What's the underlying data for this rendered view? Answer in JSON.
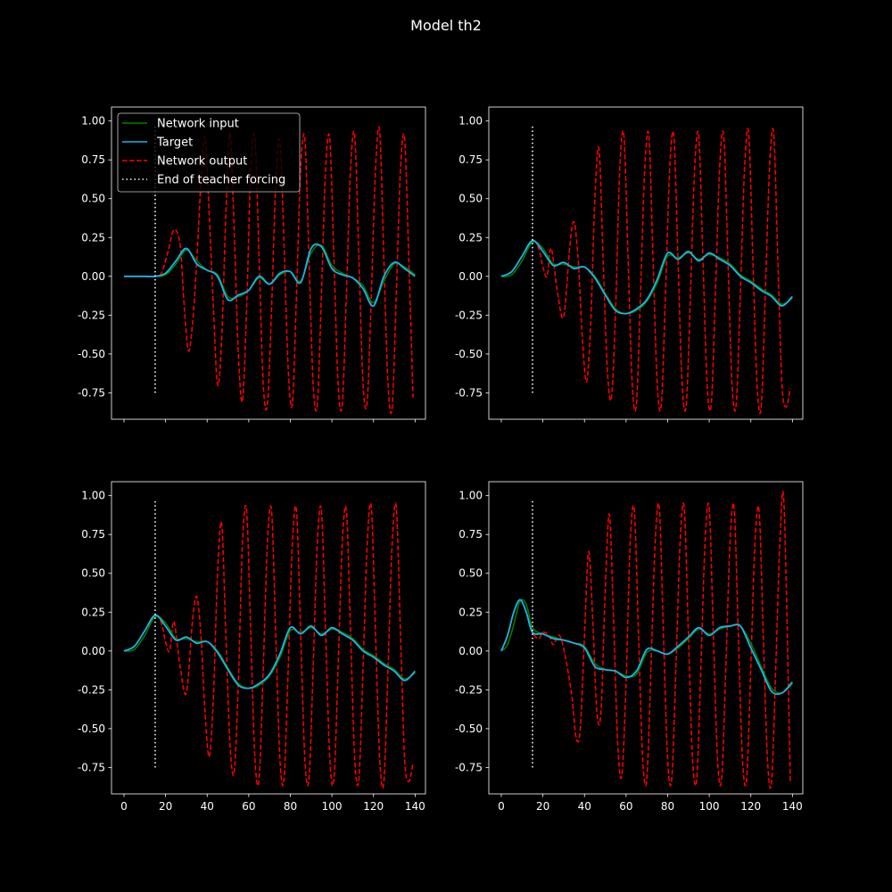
{
  "figure": {
    "title": "Model th2",
    "background": "#000000",
    "foreground": "#ffffff"
  },
  "legend": {
    "placement": "upper-left of first panel",
    "entries": [
      {
        "label": "Network input",
        "color": "#008000",
        "style": "solid"
      },
      {
        "label": "Target",
        "color": "#1fb4e6",
        "style": "solid"
      },
      {
        "label": "Network output",
        "color": "#ff0000",
        "style": "dashed"
      },
      {
        "label": "End of teacher forcing",
        "color": "#ffffff",
        "style": "dotted"
      }
    ]
  },
  "chart_data": [
    {
      "type": "line",
      "panel": "top-left",
      "xlim": [
        -6,
        145
      ],
      "ylim": [
        -0.92,
        1.09
      ],
      "xticks": [
        0,
        20,
        40,
        60,
        80,
        100,
        120,
        140
      ],
      "yticks": [
        -0.75,
        -0.5,
        -0.25,
        0.0,
        0.25,
        0.5,
        0.75,
        1.0
      ],
      "show_xtick_labels": false,
      "teacher_forcing_end": {
        "x": 15,
        "y_from": -0.75,
        "y_to": 0.98
      },
      "target": {
        "x": [
          0,
          5,
          10,
          15,
          20,
          25,
          30,
          35,
          40,
          45,
          50,
          55,
          60,
          65,
          70,
          75,
          80,
          85,
          90,
          95,
          100,
          105,
          110,
          115,
          120,
          125,
          130,
          135,
          140
        ],
        "y": [
          0,
          0,
          0,
          0,
          0.02,
          0.1,
          0.18,
          0.08,
          0.04,
          0.0,
          -0.15,
          -0.12,
          -0.09,
          0.0,
          -0.05,
          0.02,
          0.03,
          -0.04,
          0.18,
          0.19,
          0.05,
          0.01,
          -0.01,
          -0.08,
          -0.19,
          0.0,
          0.09,
          0.05,
          0.0
        ]
      },
      "network_input": {
        "x": [
          0,
          5,
          10,
          15,
          20,
          25,
          30,
          35,
          40,
          45,
          50,
          55,
          60,
          65,
          70,
          75,
          80,
          85,
          90,
          95,
          100,
          105,
          110,
          115,
          120,
          125,
          130,
          135,
          140
        ],
        "y": [
          0,
          0,
          0,
          0,
          0.01,
          0.08,
          0.17,
          0.1,
          0.04,
          0.01,
          -0.13,
          -0.13,
          -0.09,
          -0.01,
          -0.05,
          0.01,
          0.03,
          -0.03,
          0.15,
          0.2,
          0.07,
          0.02,
          -0.01,
          -0.06,
          -0.17,
          -0.03,
          0.08,
          0.06,
          0.01
        ]
      },
      "network_output": {
        "x": [
          0,
          10,
          15,
          18,
          21,
          24,
          27,
          29,
          31,
          33,
          35,
          37,
          39,
          41,
          43,
          45,
          47,
          49,
          51,
          53,
          55,
          57,
          59,
          61,
          63,
          65,
          67,
          69,
          71,
          73,
          75,
          77,
          79,
          81,
          83,
          85,
          87,
          89,
          91,
          93,
          95,
          97,
          99,
          101,
          103,
          105,
          107,
          109,
          111,
          113,
          115,
          117,
          119,
          121,
          123,
          125,
          127,
          129,
          131,
          133,
          135,
          137,
          139
        ],
        "y": [
          0,
          0,
          0,
          0.02,
          0.15,
          0.3,
          0.2,
          -0.2,
          -0.48,
          -0.3,
          0.1,
          0.6,
          0.9,
          0.4,
          -0.2,
          -0.7,
          -0.4,
          0.4,
          0.92,
          0.3,
          -0.5,
          -0.8,
          -0.2,
          0.7,
          0.88,
          0.1,
          -0.7,
          -0.82,
          -0.2,
          0.6,
          0.87,
          0.2,
          -0.6,
          -0.82,
          -0.1,
          0.7,
          0.88,
          0.1,
          -0.7,
          -0.82,
          -0.1,
          0.7,
          0.88,
          0.1,
          -0.7,
          -0.82,
          -0.1,
          0.7,
          0.9,
          0.1,
          -0.7,
          -0.8,
          -0.1,
          0.7,
          0.93,
          0.1,
          -0.7,
          -0.84,
          -0.1,
          0.7,
          0.88,
          0.1,
          -0.78
        ]
      }
    },
    {
      "type": "line",
      "panel": "top-right",
      "xlim": [
        -6,
        145
      ],
      "ylim": [
        -0.92,
        1.09
      ],
      "xticks": [
        0,
        20,
        40,
        60,
        80,
        100,
        120,
        140
      ],
      "yticks": [
        -0.75,
        -0.5,
        -0.25,
        0.0,
        0.25,
        0.5,
        0.75,
        1.0
      ],
      "show_xtick_labels": false,
      "teacher_forcing_end": {
        "x": 15,
        "y_from": -0.75,
        "y_to": 0.98
      },
      "target": {
        "x": [
          0,
          5,
          10,
          15,
          20,
          25,
          30,
          35,
          40,
          45,
          50,
          55,
          60,
          65,
          70,
          75,
          80,
          85,
          90,
          95,
          100,
          105,
          110,
          115,
          120,
          125,
          130,
          135,
          140
        ],
        "y": [
          0,
          0.03,
          0.13,
          0.23,
          0.16,
          0.07,
          0.09,
          0.05,
          0.06,
          -0.01,
          -0.12,
          -0.22,
          -0.24,
          -0.21,
          -0.15,
          -0.02,
          0.15,
          0.11,
          0.16,
          0.1,
          0.15,
          0.11,
          0.07,
          0.0,
          -0.04,
          -0.09,
          -0.13,
          -0.19,
          -0.13
        ]
      },
      "network_input": {
        "x": [
          0,
          5,
          10,
          15,
          20,
          25,
          30,
          35,
          40,
          45,
          50,
          55,
          60,
          65,
          70,
          75,
          80,
          85,
          90,
          95,
          100,
          105,
          110,
          115,
          120,
          125,
          130,
          135,
          140
        ],
        "y": [
          0,
          0.01,
          0.1,
          0.22,
          0.18,
          0.08,
          0.08,
          0.06,
          0.06,
          0.0,
          -0.11,
          -0.21,
          -0.24,
          -0.22,
          -0.16,
          -0.04,
          0.13,
          0.12,
          0.15,
          0.11,
          0.14,
          0.12,
          0.08,
          0.01,
          -0.03,
          -0.08,
          -0.12,
          -0.18,
          -0.14
        ]
      },
      "network_output": {
        "x": [
          0,
          5,
          10,
          15,
          18,
          20,
          22,
          24,
          27,
          30,
          33,
          35,
          37,
          39,
          41,
          43,
          45,
          47,
          49,
          51,
          53,
          55,
          57,
          59,
          61,
          63,
          65,
          67,
          69,
          71,
          73,
          75,
          77,
          79,
          81,
          83,
          85,
          87,
          89,
          91,
          93,
          95,
          97,
          99,
          101,
          103,
          105,
          107,
          109,
          111,
          113,
          115,
          117,
          119,
          121,
          123,
          125,
          127,
          129,
          131,
          133,
          135,
          137,
          139
        ],
        "y": [
          0,
          0.03,
          0.13,
          0.23,
          0.18,
          0.06,
          0.0,
          0.18,
          -0.1,
          -0.26,
          0.2,
          0.35,
          0.1,
          -0.4,
          -0.68,
          -0.3,
          0.5,
          0.82,
          0.1,
          -0.6,
          -0.78,
          -0.2,
          0.7,
          0.9,
          0.1,
          -0.7,
          -0.82,
          -0.1,
          0.7,
          0.9,
          0.1,
          -0.7,
          -0.82,
          -0.1,
          0.7,
          0.9,
          0.1,
          -0.7,
          -0.82,
          -0.1,
          0.7,
          0.9,
          0.1,
          -0.7,
          -0.82,
          -0.1,
          0.7,
          0.9,
          0.1,
          -0.7,
          -0.82,
          -0.1,
          0.7,
          0.92,
          0.1,
          -0.7,
          -0.84,
          -0.1,
          0.7,
          0.92,
          0.1,
          -0.7,
          -0.84,
          -0.72
        ]
      }
    },
    {
      "type": "line",
      "panel": "bottom-left",
      "xlim": [
        -6,
        145
      ],
      "ylim": [
        -0.92,
        1.09
      ],
      "xticks": [
        0,
        20,
        40,
        60,
        80,
        100,
        120,
        140
      ],
      "yticks": [
        -0.75,
        -0.5,
        -0.25,
        0.0,
        0.25,
        0.5,
        0.75,
        1.0
      ],
      "xtick_labels": [
        "0",
        "20",
        "40",
        "60",
        "80",
        "100",
        "120",
        "140"
      ],
      "show_xtick_labels": true,
      "teacher_forcing_end": {
        "x": 15,
        "y_from": -0.75,
        "y_to": 0.98
      },
      "target": {
        "x": [
          0,
          5,
          10,
          15,
          20,
          25,
          30,
          35,
          40,
          45,
          50,
          55,
          60,
          65,
          70,
          75,
          80,
          85,
          90,
          95,
          100,
          105,
          110,
          115,
          120,
          125,
          130,
          135,
          140
        ],
        "y": [
          0,
          0.03,
          0.13,
          0.23,
          0.16,
          0.07,
          0.09,
          0.05,
          0.06,
          -0.01,
          -0.12,
          -0.22,
          -0.24,
          -0.21,
          -0.15,
          -0.02,
          0.15,
          0.11,
          0.16,
          0.1,
          0.15,
          0.11,
          0.07,
          0.0,
          -0.04,
          -0.09,
          -0.13,
          -0.19,
          -0.13
        ]
      },
      "network_input": {
        "x": [
          0,
          5,
          10,
          15,
          20,
          25,
          30,
          35,
          40,
          45,
          50,
          55,
          60,
          65,
          70,
          75,
          80,
          85,
          90,
          95,
          100,
          105,
          110,
          115,
          120,
          125,
          130,
          135,
          140
        ],
        "y": [
          0,
          0.01,
          0.1,
          0.22,
          0.18,
          0.08,
          0.08,
          0.06,
          0.06,
          0.0,
          -0.11,
          -0.21,
          -0.24,
          -0.22,
          -0.16,
          -0.04,
          0.13,
          0.12,
          0.15,
          0.11,
          0.14,
          0.12,
          0.08,
          0.01,
          -0.03,
          -0.08,
          -0.12,
          -0.18,
          -0.14
        ]
      },
      "network_output": {
        "x": [
          0,
          5,
          10,
          15,
          18,
          20,
          22,
          24,
          27,
          30,
          33,
          35,
          37,
          39,
          41,
          43,
          45,
          47,
          49,
          51,
          53,
          55,
          57,
          59,
          61,
          63,
          65,
          67,
          69,
          71,
          73,
          75,
          77,
          79,
          81,
          83,
          85,
          87,
          89,
          91,
          93,
          95,
          97,
          99,
          101,
          103,
          105,
          107,
          109,
          111,
          113,
          115,
          117,
          119,
          121,
          123,
          125,
          127,
          129,
          131,
          133,
          135,
          137,
          139
        ],
        "y": [
          0,
          0.03,
          0.13,
          0.23,
          0.18,
          0.06,
          0.0,
          0.19,
          -0.1,
          -0.27,
          0.2,
          0.35,
          0.1,
          -0.4,
          -0.68,
          -0.3,
          0.5,
          0.82,
          0.1,
          -0.6,
          -0.78,
          -0.2,
          0.7,
          0.9,
          0.1,
          -0.7,
          -0.82,
          -0.1,
          0.7,
          0.9,
          0.1,
          -0.7,
          -0.82,
          -0.1,
          0.7,
          0.9,
          0.1,
          -0.7,
          -0.82,
          -0.1,
          0.7,
          0.9,
          0.1,
          -0.7,
          -0.82,
          -0.1,
          0.7,
          0.9,
          0.1,
          -0.7,
          -0.82,
          -0.1,
          0.7,
          0.92,
          0.1,
          -0.7,
          -0.84,
          -0.1,
          0.7,
          0.92,
          0.1,
          -0.7,
          -0.84,
          -0.72
        ]
      }
    },
    {
      "type": "line",
      "panel": "bottom-right",
      "xlim": [
        -6,
        145
      ],
      "ylim": [
        -0.92,
        1.09
      ],
      "xticks": [
        0,
        20,
        40,
        60,
        80,
        100,
        120,
        140
      ],
      "yticks": [
        -0.75,
        -0.5,
        -0.25,
        0.0,
        0.25,
        0.5,
        0.75,
        1.0
      ],
      "xtick_labels": [
        "0",
        "20",
        "40",
        "60",
        "80",
        "100",
        "120",
        "140"
      ],
      "show_xtick_labels": true,
      "teacher_forcing_end": {
        "x": 15,
        "y_from": -0.75,
        "y_to": 0.98
      },
      "target": {
        "x": [
          0,
          3,
          6,
          9,
          12,
          15,
          20,
          25,
          30,
          35,
          40,
          45,
          50,
          55,
          60,
          65,
          70,
          75,
          80,
          85,
          90,
          95,
          100,
          105,
          110,
          115,
          120,
          125,
          130,
          135,
          140
        ],
        "y": [
          0,
          0.1,
          0.25,
          0.33,
          0.25,
          0.12,
          0.11,
          0.08,
          0.07,
          0.05,
          0.02,
          -0.1,
          -0.12,
          -0.13,
          -0.17,
          -0.13,
          0.01,
          0.0,
          -0.02,
          0.03,
          0.09,
          0.15,
          0.1,
          0.15,
          0.16,
          0.16,
          0.02,
          -0.12,
          -0.26,
          -0.27,
          -0.2
        ]
      },
      "network_input": {
        "x": [
          0,
          3,
          6,
          9,
          12,
          15,
          20,
          25,
          30,
          35,
          40,
          45,
          50,
          55,
          60,
          65,
          70,
          75,
          80,
          85,
          90,
          95,
          100,
          105,
          110,
          115,
          120,
          125,
          130,
          135,
          140
        ],
        "y": [
          0,
          0.04,
          0.17,
          0.32,
          0.3,
          0.15,
          0.11,
          0.09,
          0.07,
          0.05,
          0.03,
          -0.08,
          -0.12,
          -0.13,
          -0.16,
          -0.15,
          -0.01,
          0.0,
          -0.02,
          0.02,
          0.08,
          0.14,
          0.11,
          0.14,
          0.16,
          0.16,
          0.05,
          -0.1,
          -0.24,
          -0.27,
          -0.21
        ]
      },
      "network_output": {
        "x": [
          0,
          3,
          6,
          9,
          12,
          15,
          18,
          20,
          23,
          25,
          28,
          31,
          34,
          36,
          38,
          40,
          42,
          44,
          46,
          48,
          50,
          52,
          54,
          56,
          58,
          60,
          62,
          64,
          66,
          68,
          70,
          72,
          74,
          76,
          78,
          80,
          82,
          84,
          86,
          88,
          90,
          92,
          94,
          96,
          98,
          100,
          102,
          104,
          106,
          108,
          110,
          112,
          114,
          116,
          118,
          120,
          122,
          124,
          126,
          128,
          130,
          132,
          134,
          136,
          139
        ],
        "y": [
          0,
          0.1,
          0.25,
          0.33,
          0.25,
          0.12,
          0.08,
          0.12,
          0.1,
          0.04,
          0.1,
          -0.05,
          -0.3,
          -0.56,
          -0.5,
          0.1,
          0.64,
          0.2,
          -0.4,
          -0.38,
          0.4,
          0.88,
          0.2,
          -0.6,
          -0.8,
          -0.2,
          0.7,
          0.9,
          0.1,
          -0.7,
          -0.82,
          -0.1,
          0.7,
          0.92,
          0.1,
          -0.7,
          -0.82,
          -0.1,
          0.7,
          0.92,
          0.1,
          -0.7,
          -0.82,
          -0.1,
          0.7,
          0.92,
          0.1,
          -0.7,
          -0.82,
          -0.1,
          0.7,
          0.92,
          0.1,
          -0.7,
          -0.82,
          -0.1,
          0.7,
          0.9,
          0.1,
          -0.7,
          -0.84,
          -0.1,
          0.7,
          0.93,
          -0.84
        ]
      }
    }
  ]
}
